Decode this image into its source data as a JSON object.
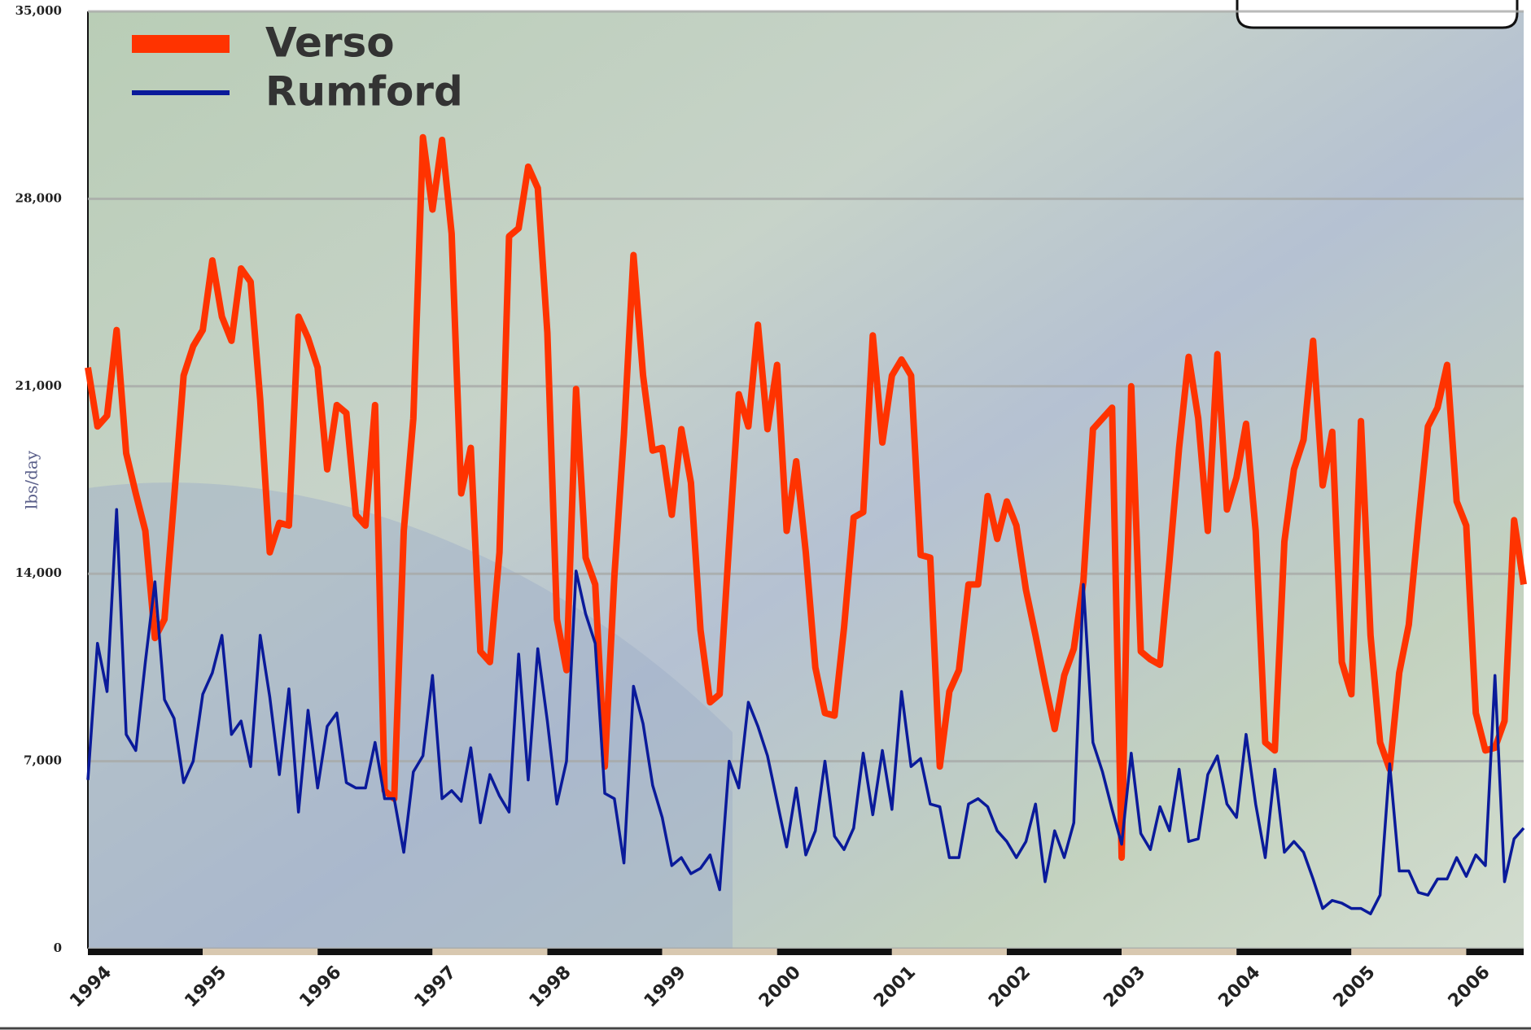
{
  "chart_data": {
    "type": "line",
    "y_label": "lbs/day",
    "categories": [
      "1994",
      null,
      null,
      null,
      null,
      null,
      null,
      null,
      null,
      null,
      null,
      null,
      "1995",
      null,
      null,
      null,
      null,
      null,
      null,
      null,
      null,
      null,
      null,
      null,
      "1996",
      null,
      null,
      null,
      null,
      null,
      null,
      null,
      null,
      null,
      null,
      null,
      "1997",
      null,
      null,
      null,
      null,
      null,
      null,
      null,
      null,
      null,
      null,
      null,
      "1998",
      null,
      null,
      null,
      null,
      null,
      null,
      null,
      null,
      null,
      null,
      null,
      "1999",
      null,
      null,
      null,
      null,
      null,
      null,
      null,
      null,
      null,
      null,
      null,
      "2000",
      null,
      null,
      null,
      null,
      null,
      null,
      null,
      null,
      null,
      null,
      null,
      "2001",
      null,
      null,
      null,
      null,
      null,
      null,
      null,
      null,
      null,
      null,
      null,
      "2002",
      null,
      null,
      null,
      null,
      null,
      null,
      null,
      null,
      null,
      null,
      null,
      "2003",
      null,
      null,
      null,
      null,
      null,
      null,
      null,
      null,
      null,
      null,
      null,
      "2004",
      null,
      null,
      null,
      null,
      null,
      null,
      null,
      null,
      null,
      null,
      null,
      "2005",
      null,
      null,
      null,
      null,
      null,
      null,
      null,
      null,
      null,
      null,
      null,
      "2006",
      null,
      null,
      null,
      null,
      null,
      null
    ],
    "series": [
      {
        "name": "Verso",
        "color": "#ff3300",
        "values": [
          21700,
          19500,
          19900,
          23100,
          18500,
          17000,
          15600,
          11600,
          12300,
          16800,
          21400,
          22500,
          23100,
          25700,
          23600,
          22700,
          25400,
          24900,
          20500,
          14800,
          15900,
          15800,
          23600,
          22800,
          21700,
          17900,
          20300,
          20000,
          16200,
          15800,
          20300,
          5900,
          5600,
          15600,
          19800,
          30300,
          27600,
          30200,
          26700,
          17000,
          18700,
          11100,
          10700,
          14800,
          26600,
          26900,
          29200,
          28400,
          23000,
          12300,
          10400,
          20900,
          14600,
          13600,
          6800,
          13900,
          19200,
          25900,
          21400,
          18600,
          18700,
          16200,
          19400,
          17400,
          11900,
          9200,
          9500,
          15200,
          20700,
          19500,
          23300,
          19400,
          21800,
          15600,
          18200,
          14800,
          10500,
          8800,
          8700,
          12000,
          16100,
          16300,
          22900,
          18900,
          21400,
          22000,
          21400,
          14700,
          14600,
          6800,
          9600,
          10400,
          13600,
          13600,
          16900,
          15300,
          16700,
          15800,
          13400,
          11700,
          9900,
          8200,
          10200,
          11200,
          13700,
          19400,
          19800,
          20200,
          3400,
          21000,
          11100,
          10800,
          10600,
          14500,
          18700,
          22100,
          19800,
          15600,
          22200,
          16400,
          17600,
          19600,
          15600,
          7700,
          7400,
          15200,
          17900,
          19000,
          22700,
          17300,
          19300,
          10700,
          9500,
          19700,
          11700,
          7700,
          6700,
          10300,
          12100,
          15900,
          19500,
          20200,
          21800,
          16700,
          15800,
          8800,
          7400,
          7500,
          8500,
          16000,
          13600
        ]
      },
      {
        "name": "Rumford",
        "color": "#0a1a9a",
        "values": [
          6300,
          11400,
          9600,
          16400,
          8000,
          7400,
          10700,
          13700,
          9300,
          8600,
          6200,
          7000,
          9500,
          10300,
          11700,
          8000,
          8500,
          6800,
          11700,
          9400,
          6500,
          9700,
          5100,
          8900,
          6000,
          8300,
          8800,
          6200,
          6000,
          6000,
          7700,
          5600,
          5600,
          3600,
          6600,
          7200,
          10200,
          5600,
          5900,
          5500,
          7500,
          4700,
          6500,
          5700,
          5100,
          11000,
          6300,
          11200,
          8500,
          5400,
          7000,
          14100,
          12500,
          11400,
          5800,
          5600,
          3200,
          9800,
          8400,
          6100,
          4900,
          3100,
          3400,
          2800,
          3000,
          3500,
          2200,
          7000,
          6000,
          9200,
          8300,
          7200,
          5500,
          3800,
          6000,
          3500,
          4400,
          7000,
          4200,
          3700,
          4500,
          7300,
          5000,
          7400,
          5200,
          9600,
          6800,
          7100,
          5400,
          5300,
          3400,
          3400,
          5400,
          5600,
          5300,
          4400,
          4000,
          3400,
          4000,
          5400,
          2500,
          4400,
          3400,
          4700,
          13600,
          7700,
          6600,
          5200,
          3900,
          7300,
          4300,
          3700,
          5300,
          4400,
          6700,
          4000,
          4100,
          6500,
          7200,
          5400,
          4900,
          8000,
          5400,
          3400,
          6700,
          3600,
          4000,
          3600,
          2600,
          1500,
          1800,
          1700,
          1500,
          1500,
          1300,
          2000,
          6900,
          2900,
          2900,
          2100,
          2000,
          2600,
          2600,
          3400,
          2700,
          3500,
          3100,
          10200,
          2500,
          4100,
          4500
        ]
      }
    ],
    "ylim": [
      0,
      35000
    ],
    "yticks": [
      0,
      {
        "value": 7000,
        "label": "7,000"
      },
      {
        "value": 14000,
        "label": "14,000"
      },
      {
        "value": 21000,
        "label": "21,000"
      },
      {
        "value": 28000,
        "label": "28,000"
      },
      {
        "value": 35000,
        "label": "35,000"
      }
    ],
    "grid": true
  }
}
